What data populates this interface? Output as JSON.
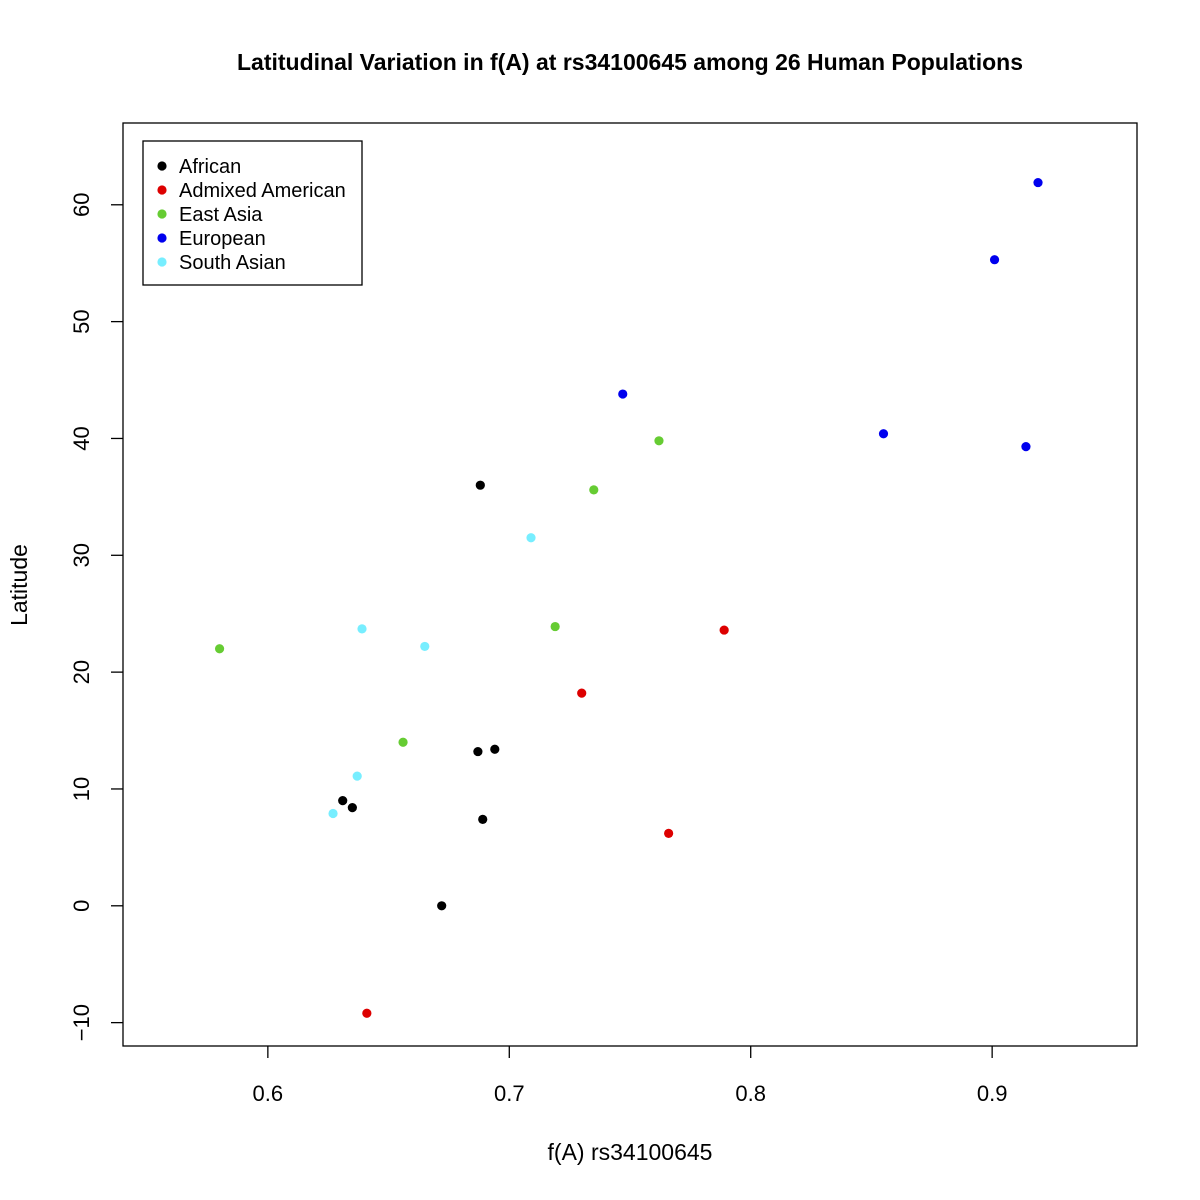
{
  "chart_data": {
    "type": "scatter",
    "title": "Latitudinal Variation in f(A) at rs34100645 among 26 Human Populations",
    "xlabel": "f(A) rs34100645",
    "ylabel": "Latitude",
    "xlim": [
      0.54,
      0.96
    ],
    "ylim": [
      -12,
      67
    ],
    "xticks": [
      0.6,
      0.7,
      0.8,
      0.9
    ],
    "xtick_labels": [
      "0.6",
      "0.7",
      "0.8",
      "0.9"
    ],
    "yticks": [
      -10,
      0,
      10,
      20,
      30,
      40,
      50,
      60
    ],
    "ytick_labels": [
      "−10",
      "0",
      "10",
      "20",
      "30",
      "40",
      "50",
      "60"
    ],
    "grid": false,
    "legend_position": "top-left",
    "series": [
      {
        "name": "African",
        "color": "#000000",
        "points": [
          [
            0.688,
            36.0
          ],
          [
            0.687,
            13.2
          ],
          [
            0.694,
            13.4
          ],
          [
            0.631,
            9.0
          ],
          [
            0.635,
            8.4
          ],
          [
            0.689,
            7.4
          ],
          [
            0.672,
            0.0
          ]
        ]
      },
      {
        "name": "Admixed American",
        "color": "#dd0000",
        "points": [
          [
            0.789,
            23.6
          ],
          [
            0.73,
            18.2
          ],
          [
            0.766,
            6.2
          ],
          [
            0.641,
            -9.2
          ]
        ]
      },
      {
        "name": "East Asia",
        "color": "#66cc33",
        "points": [
          [
            0.762,
            39.8
          ],
          [
            0.735,
            35.6
          ],
          [
            0.719,
            23.9
          ],
          [
            0.58,
            22.0
          ],
          [
            0.656,
            14.0
          ]
        ]
      },
      {
        "name": "European",
        "color": "#0000ee",
        "points": [
          [
            0.919,
            61.9
          ],
          [
            0.901,
            55.3
          ],
          [
            0.747,
            43.8
          ],
          [
            0.855,
            40.4
          ],
          [
            0.914,
            39.3
          ]
        ]
      },
      {
        "name": "South Asian",
        "color": "#77eeff",
        "points": [
          [
            0.709,
            31.5
          ],
          [
            0.639,
            23.7
          ],
          [
            0.665,
            22.2
          ],
          [
            0.637,
            11.1
          ],
          [
            0.627,
            7.9
          ]
        ]
      }
    ]
  }
}
